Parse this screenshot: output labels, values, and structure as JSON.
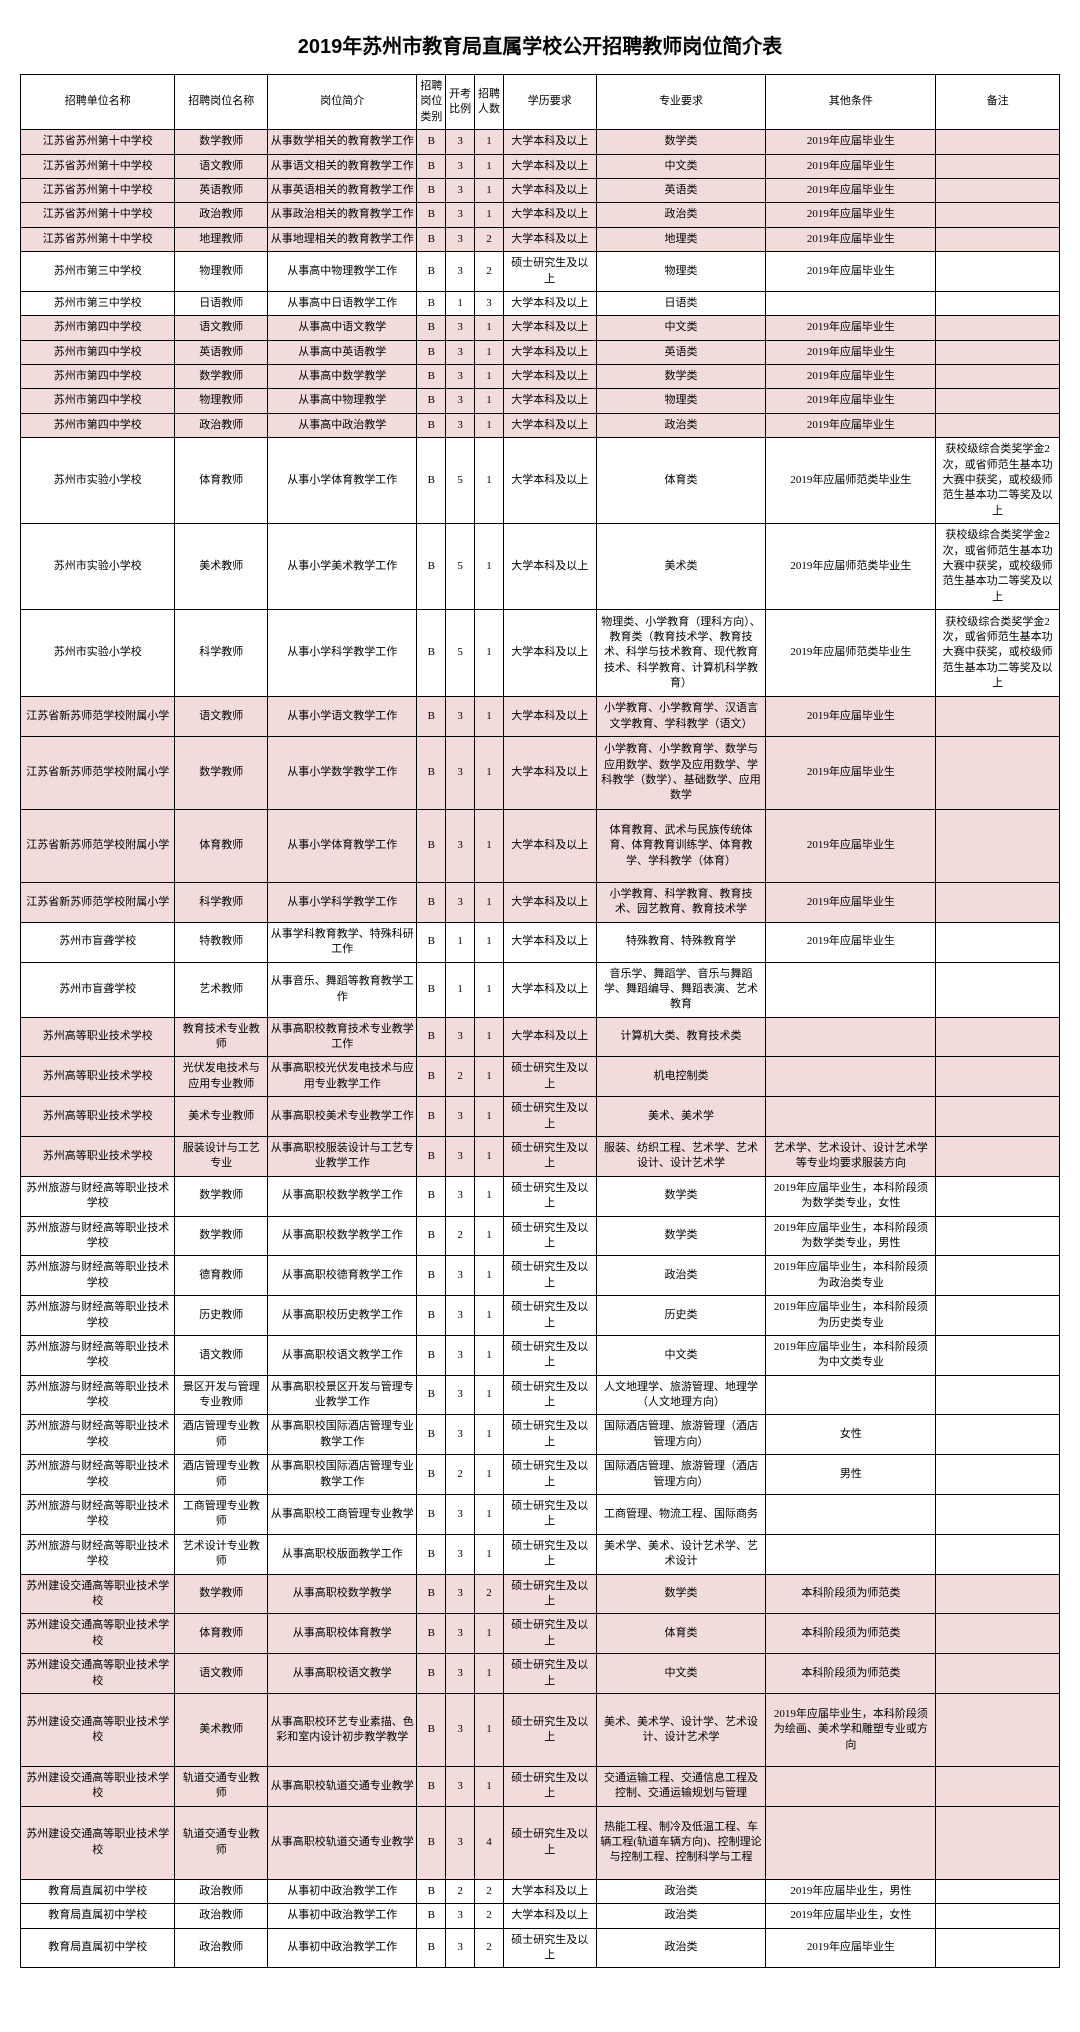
{
  "title": "2019年苏州市教育局直属学校公开招聘教师岗位简介表",
  "headers": [
    "招聘单位名称",
    "招聘岗位名称",
    "岗位简介",
    "招聘岗位类别",
    "开考比例",
    "招聘人数",
    "学历要求",
    "专业要求",
    "其他条件",
    "备注"
  ],
  "rows": [
    {
      "pink": 1,
      "c": [
        "江苏省苏州第十中学校",
        "数学教师",
        "从事数学相关的教育教学工作",
        "B",
        "3",
        "1",
        "大学本科及以上",
        "数学类",
        "2019年应届毕业生",
        ""
      ]
    },
    {
      "pink": 1,
      "c": [
        "江苏省苏州第十中学校",
        "语文教师",
        "从事语文相关的教育教学工作",
        "B",
        "3",
        "1",
        "大学本科及以上",
        "中文类",
        "2019年应届毕业生",
        ""
      ]
    },
    {
      "pink": 1,
      "c": [
        "江苏省苏州第十中学校",
        "英语教师",
        "从事英语相关的教育教学工作",
        "B",
        "3",
        "1",
        "大学本科及以上",
        "英语类",
        "2019年应届毕业生",
        ""
      ]
    },
    {
      "pink": 1,
      "c": [
        "江苏省苏州第十中学校",
        "政治教师",
        "从事政治相关的教育教学工作",
        "B",
        "3",
        "1",
        "大学本科及以上",
        "政治类",
        "2019年应届毕业生",
        ""
      ]
    },
    {
      "pink": 1,
      "c": [
        "江苏省苏州第十中学校",
        "地理教师",
        "从事地理相关的教育教学工作",
        "B",
        "3",
        "2",
        "大学本科及以上",
        "地理类",
        "2019年应届毕业生",
        ""
      ]
    },
    {
      "pink": 0,
      "c": [
        "苏州市第三中学校",
        "物理教师",
        "从事高中物理教学工作",
        "B",
        "3",
        "2",
        "硕士研究生及以上",
        "物理类",
        "2019年应届毕业生",
        ""
      ]
    },
    {
      "pink": 0,
      "c": [
        "苏州市第三中学校",
        "日语教师",
        "从事高中日语教学工作",
        "B",
        "1",
        "3",
        "大学本科及以上",
        "日语类",
        "",
        ""
      ]
    },
    {
      "pink": 1,
      "c": [
        "苏州市第四中学校",
        "语文教师",
        "从事高中语文教学",
        "B",
        "3",
        "1",
        "大学本科及以上",
        "中文类",
        "2019年应届毕业生",
        ""
      ]
    },
    {
      "pink": 1,
      "c": [
        "苏州市第四中学校",
        "英语教师",
        "从事高中英语教学",
        "B",
        "3",
        "1",
        "大学本科及以上",
        "英语类",
        "2019年应届毕业生",
        ""
      ]
    },
    {
      "pink": 1,
      "c": [
        "苏州市第四中学校",
        "数学教师",
        "从事高中数学教学",
        "B",
        "3",
        "1",
        "大学本科及以上",
        "数学类",
        "2019年应届毕业生",
        ""
      ]
    },
    {
      "pink": 1,
      "c": [
        "苏州市第四中学校",
        "物理教师",
        "从事高中物理教学",
        "B",
        "3",
        "1",
        "大学本科及以上",
        "物理类",
        "2019年应届毕业生",
        ""
      ]
    },
    {
      "pink": 1,
      "c": [
        "苏州市第四中学校",
        "政治教师",
        "从事高中政治教学",
        "B",
        "3",
        "1",
        "大学本科及以上",
        "政治类",
        "2019年应届毕业生",
        ""
      ]
    },
    {
      "pink": 0,
      "h": "tall",
      "c": [
        "苏州市实验小学校",
        "体育教师",
        "从事小学体育教学工作",
        "B",
        "5",
        "1",
        "大学本科及以上",
        "体育类",
        "2019年应届师范类毕业生",
        "获校级综合类奖学金2次，或省师范生基本功大赛中获奖，或校级师范生基本功二等奖及以上"
      ]
    },
    {
      "pink": 0,
      "h": "tall",
      "c": [
        "苏州市实验小学校",
        "美术教师",
        "从事小学美术教学工作",
        "B",
        "5",
        "1",
        "大学本科及以上",
        "美术类",
        "2019年应届师范类毕业生",
        "获校级综合类奖学金2次，或省师范生基本功大赛中获奖，或校级师范生基本功二等奖及以上"
      ]
    },
    {
      "pink": 0,
      "h": "xtall",
      "c": [
        "苏州市实验小学校",
        "科学教师",
        "从事小学科学教学工作",
        "B",
        "5",
        "1",
        "大学本科及以上",
        "物理类、小学教育（理科方向）、教育类（教育技术学、教育技术、科学与技术教育、现代教育技术、科学教育、计算机科学教育）",
        "2019年应届师范类毕业生",
        "获校级综合类奖学金2次，或省师范生基本功大赛中获奖，或校级师范生基本功二等奖及以上"
      ]
    },
    {
      "pink": 1,
      "c": [
        "江苏省新苏师范学校附属小学",
        "语文教师",
        "从事小学语文教学工作",
        "B",
        "3",
        "1",
        "大学本科及以上",
        "小学教育、小学教育学、汉语言文学教育、学科教学（语文）",
        "2019年应届毕业生",
        ""
      ]
    },
    {
      "pink": 1,
      "h": "tall",
      "c": [
        "江苏省新苏师范学校附属小学",
        "数学教师",
        "从事小学数学教学工作",
        "B",
        "3",
        "1",
        "大学本科及以上",
        "小学教育、小学教育学、数学与应用数学、数学及应用数学、学科教学（数学）、基础数学、应用数学",
        "2019年应届毕业生",
        ""
      ]
    },
    {
      "pink": 1,
      "h": "tall",
      "c": [
        "江苏省新苏师范学校附属小学",
        "体育教师",
        "从事小学体育教学工作",
        "B",
        "3",
        "1",
        "大学本科及以上",
        "体育教育、武术与民族传统体育、体育教育训练学、体育教学、学科教学（体育）",
        "2019年应届毕业生",
        ""
      ]
    },
    {
      "pink": 1,
      "c": [
        "江苏省新苏师范学校附属小学",
        "科学教师",
        "从事小学科学教学工作",
        "B",
        "3",
        "1",
        "大学本科及以上",
        "小学教育、科学教育、教育技术、园艺教育、教育技术学",
        "2019年应届毕业生",
        ""
      ]
    },
    {
      "pink": 0,
      "c": [
        "苏州市盲聋学校",
        "特教教师",
        "从事学科教育教学、特殊科研工作",
        "B",
        "1",
        "1",
        "大学本科及以上",
        "特殊教育、特殊教育学",
        "2019年应届毕业生",
        ""
      ]
    },
    {
      "pink": 0,
      "c": [
        "苏州市盲聋学校",
        "艺术教师",
        "从事音乐、舞蹈等教育教学工作",
        "B",
        "1",
        "1",
        "大学本科及以上",
        "音乐学、舞蹈学、音乐与舞蹈学、舞蹈编导、舞蹈表演、艺术教育",
        "",
        ""
      ]
    },
    {
      "pink": 1,
      "c": [
        "苏州高等职业技术学校",
        "教育技术专业教师",
        "从事高职校教育技术专业教学工作",
        "B",
        "3",
        "1",
        "大学本科及以上",
        "计算机大类、教育技术类",
        "",
        ""
      ]
    },
    {
      "pink": 1,
      "c": [
        "苏州高等职业技术学校",
        "光伏发电技术与应用专业教师",
        "从事高职校光伏发电技术与应用专业教学工作",
        "B",
        "2",
        "1",
        "硕士研究生及以上",
        "机电控制类",
        "",
        ""
      ]
    },
    {
      "pink": 1,
      "c": [
        "苏州高等职业技术学校",
        "美术专业教师",
        "从事高职校美术专业教学工作",
        "B",
        "3",
        "1",
        "硕士研究生及以上",
        "美术、美术学",
        "",
        ""
      ]
    },
    {
      "pink": 1,
      "c": [
        "苏州高等职业技术学校",
        "服装设计与工艺专业",
        "从事高职校服装设计与工艺专业教学工作",
        "B",
        "3",
        "1",
        "硕士研究生及以上",
        "服装、纺织工程、艺术学、艺术设计、设计艺术学",
        "艺术学、艺术设计、设计艺术学等专业均要求服装方向",
        ""
      ]
    },
    {
      "pink": 0,
      "c": [
        "苏州旅游与财经高等职业技术学校",
        "数学教师",
        "从事高职校数学教学工作",
        "B",
        "3",
        "1",
        "硕士研究生及以上",
        "数学类",
        "2019年应届毕业生，本科阶段须为数学类专业，女性",
        ""
      ]
    },
    {
      "pink": 0,
      "c": [
        "苏州旅游与财经高等职业技术学校",
        "数学教师",
        "从事高职校数学教学工作",
        "B",
        "2",
        "1",
        "硕士研究生及以上",
        "数学类",
        "2019年应届毕业生，本科阶段须为数学类专业，男性",
        ""
      ]
    },
    {
      "pink": 0,
      "c": [
        "苏州旅游与财经高等职业技术学校",
        "德育教师",
        "从事高职校德育教学工作",
        "B",
        "3",
        "1",
        "硕士研究生及以上",
        "政治类",
        "2019年应届毕业生，本科阶段须为政治类专业",
        ""
      ]
    },
    {
      "pink": 0,
      "c": [
        "苏州旅游与财经高等职业技术学校",
        "历史教师",
        "从事高职校历史教学工作",
        "B",
        "3",
        "1",
        "硕士研究生及以上",
        "历史类",
        "2019年应届毕业生，本科阶段须为历史类专业",
        ""
      ]
    },
    {
      "pink": 0,
      "c": [
        "苏州旅游与财经高等职业技术学校",
        "语文教师",
        "从事高职校语文教学工作",
        "B",
        "3",
        "1",
        "硕士研究生及以上",
        "中文类",
        "2019年应届毕业生，本科阶段须为中文类专业",
        ""
      ]
    },
    {
      "pink": 0,
      "c": [
        "苏州旅游与财经高等职业技术学校",
        "景区开发与管理专业教师",
        "从事高职校景区开发与管理专业教学工作",
        "B",
        "3",
        "1",
        "硕士研究生及以上",
        "人文地理学、旅游管理、地理学（人文地理方向）",
        "",
        ""
      ]
    },
    {
      "pink": 0,
      "c": [
        "苏州旅游与财经高等职业技术学校",
        "酒店管理专业教师",
        "从事高职校国际酒店管理专业教学工作",
        "B",
        "3",
        "1",
        "硕士研究生及以上",
        "国际酒店管理、旅游管理（酒店管理方向）",
        "女性",
        ""
      ]
    },
    {
      "pink": 0,
      "c": [
        "苏州旅游与财经高等职业技术学校",
        "酒店管理专业教师",
        "从事高职校国际酒店管理专业教学工作",
        "B",
        "2",
        "1",
        "硕士研究生及以上",
        "国际酒店管理、旅游管理（酒店管理方向）",
        "男性",
        ""
      ]
    },
    {
      "pink": 0,
      "c": [
        "苏州旅游与财经高等职业技术学校",
        "工商管理专业教师",
        "从事高职校工商管理专业教学",
        "B",
        "3",
        "1",
        "硕士研究生及以上",
        "工商管理、物流工程、国际商务",
        "",
        ""
      ]
    },
    {
      "pink": 0,
      "c": [
        "苏州旅游与财经高等职业技术学校",
        "艺术设计专业教师",
        "从事高职校版面教学工作",
        "B",
        "3",
        "1",
        "硕士研究生及以上",
        "美术学、美术、设计艺术学、艺术设计",
        "",
        ""
      ]
    },
    {
      "pink": 1,
      "c": [
        "苏州建设交通高等职业技术学校",
        "数学教师",
        "从事高职校数学教学",
        "B",
        "3",
        "2",
        "硕士研究生及以上",
        "数学类",
        "本科阶段须为师范类",
        ""
      ]
    },
    {
      "pink": 1,
      "c": [
        "苏州建设交通高等职业技术学校",
        "体育教师",
        "从事高职校体育教学",
        "B",
        "3",
        "1",
        "硕士研究生及以上",
        "体育类",
        "本科阶段须为师范类",
        ""
      ]
    },
    {
      "pink": 1,
      "c": [
        "苏州建设交通高等职业技术学校",
        "语文教师",
        "从事高职校语文教学",
        "B",
        "3",
        "1",
        "硕士研究生及以上",
        "中文类",
        "本科阶段须为师范类",
        ""
      ]
    },
    {
      "pink": 1,
      "h": "tall",
      "c": [
        "苏州建设交通高等职业技术学校",
        "美术教师",
        "从事高职校环艺专业素描、色彩和室内设计初步教学教学",
        "B",
        "3",
        "1",
        "硕士研究生及以上",
        "美术、美术学、设计学、艺术设计、设计艺术学",
        "2019年应届毕业生，本科阶段须为绘画、美术学和雕塑专业或方向",
        ""
      ]
    },
    {
      "pink": 1,
      "c": [
        "苏州建设交通高等职业技术学校",
        "轨道交通专业教师",
        "从事高职校轨道交通专业教学",
        "B",
        "3",
        "1",
        "硕士研究生及以上",
        "交通运输工程、交通信息工程及控制、交通运输规划与管理",
        "",
        ""
      ]
    },
    {
      "pink": 1,
      "h": "tall",
      "c": [
        "苏州建设交通高等职业技术学校",
        "轨道交通专业教师",
        "从事高职校轨道交通专业教学",
        "B",
        "3",
        "4",
        "硕士研究生及以上",
        "热能工程、制冷及低温工程、车辆工程(轨道车辆方向)、控制理论与控制工程、控制科学与工程",
        "",
        ""
      ]
    },
    {
      "pink": 0,
      "c": [
        "教育局直属初中学校",
        "政治教师",
        "从事初中政治教学工作",
        "B",
        "2",
        "2",
        "大学本科及以上",
        "政治类",
        "2019年应届毕业生，男性",
        ""
      ]
    },
    {
      "pink": 0,
      "c": [
        "教育局直属初中学校",
        "政治教师",
        "从事初中政治教学工作",
        "B",
        "3",
        "2",
        "大学本科及以上",
        "政治类",
        "2019年应届毕业生，女性",
        ""
      ]
    },
    {
      "pink": 0,
      "c": [
        "教育局直属初中学校",
        "政治教师",
        "从事初中政治教学工作",
        "B",
        "3",
        "2",
        "硕士研究生及以上",
        "政治类",
        "2019年应届毕业生",
        ""
      ]
    }
  ]
}
